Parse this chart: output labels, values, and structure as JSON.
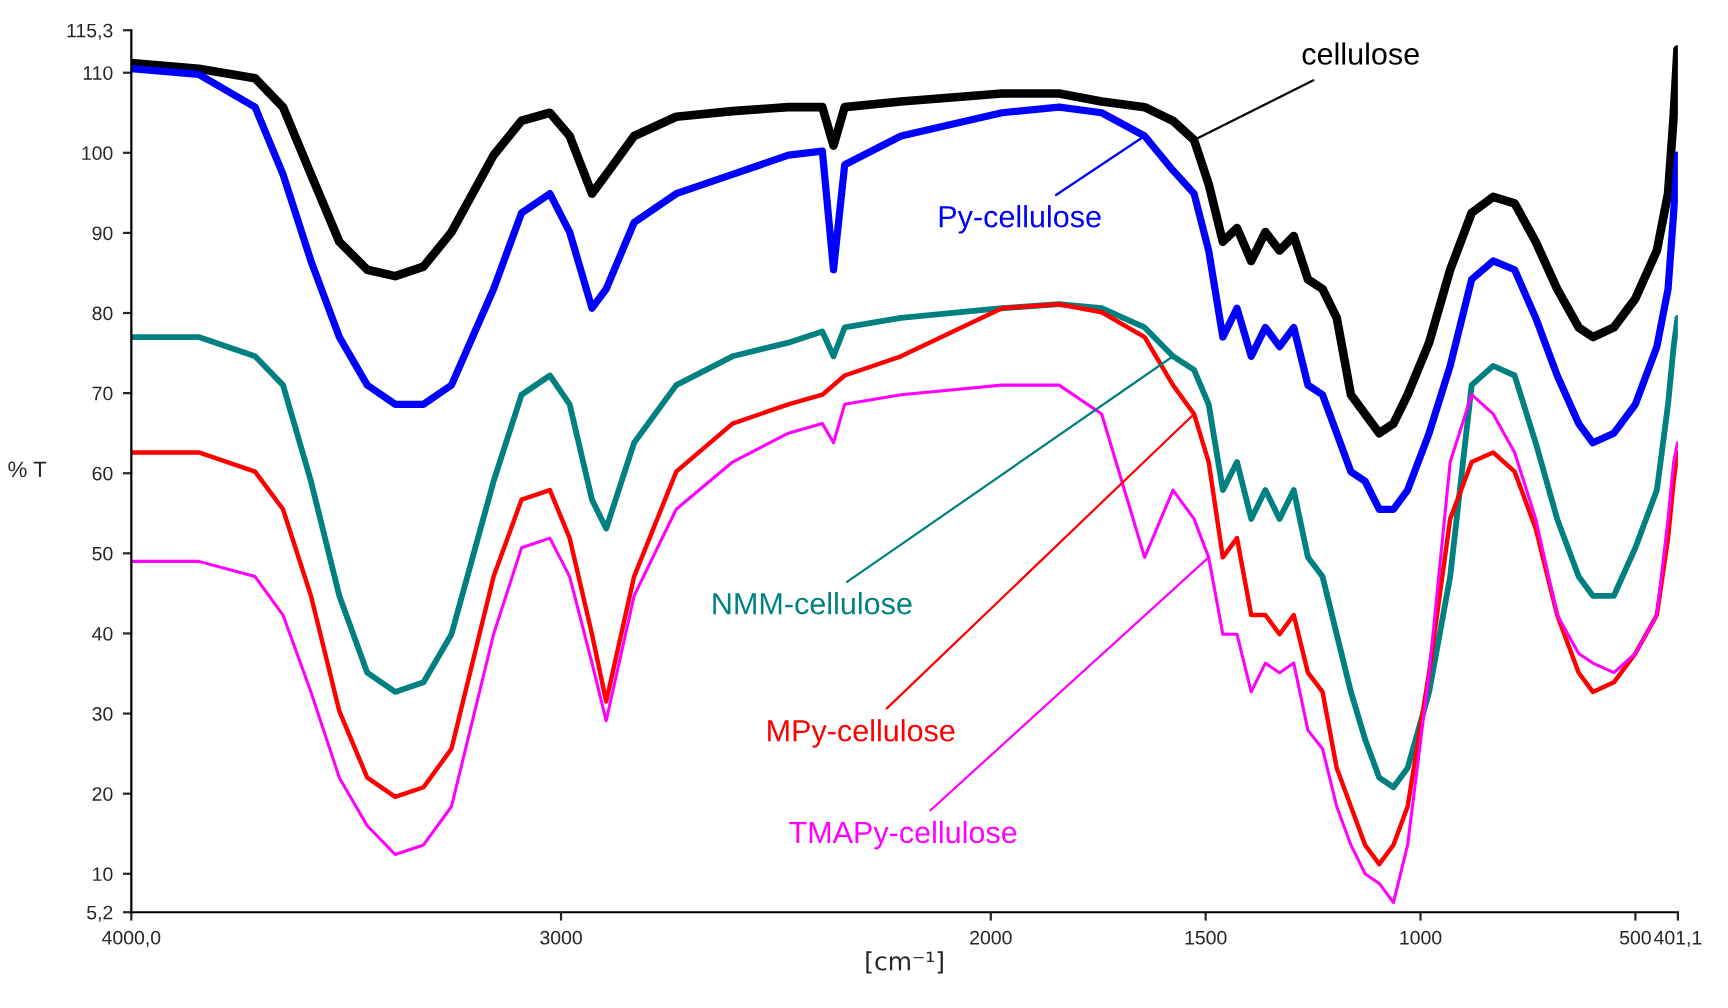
{
  "chart_data": {
    "type": "line",
    "xlabel": "[cm⁻¹]",
    "ylabel": "% T",
    "x": [
      4000,
      3843,
      3712,
      3647,
      3582,
      3516,
      3451,
      3386,
      3320,
      3255,
      3157,
      3092,
      3026,
      2980,
      2928,
      2895,
      2830,
      2732,
      2601,
      2471,
      2392,
      2366,
      2340,
      2209,
      1974,
      1841,
      1742,
      1642,
      1576,
      1527,
      1493,
      1460,
      1427,
      1394,
      1361,
      1328,
      1295,
      1262,
      1228,
      1195,
      1162,
      1129,
      1096,
      1063,
      1030,
      980,
      931,
      881,
      831,
      781,
      732,
      682,
      632,
      599,
      550,
      500,
      450,
      424,
      411,
      402
    ],
    "xlim": [
      4000,
      401.1
    ],
    "xticks": [
      {
        "value": 4000,
        "label": "4000,0"
      },
      3000,
      2000,
      1500,
      1000,
      500,
      {
        "value": 401.1,
        "label": "401,1"
      }
    ],
    "ylim": [
      5.2,
      115.3
    ],
    "yticks": [
      {
        "value": 5.2,
        "label": "5,2"
      },
      10,
      20,
      30,
      40,
      50,
      60,
      70,
      80,
      90,
      100,
      110,
      {
        "value": 115.3,
        "label": "115,3"
      }
    ],
    "grid": false,
    "series": [
      {
        "name": "cellulose",
        "color": "#000000",
        "values": [
          111.2,
          110.5,
          109.3,
          105.7,
          97.3,
          88.9,
          85.4,
          84.6,
          85.8,
          90.1,
          99.7,
          104,
          105,
          102.1,
          94.9,
          97.3,
          102.1,
          104.5,
          105.2,
          105.7,
          105.7,
          100.9,
          105.7,
          106.4,
          107.4,
          107.4,
          106.4,
          105.7,
          104,
          101.6,
          96.1,
          88.9,
          90.6,
          86.5,
          90.1,
          87.8,
          89.6,
          84.2,
          83,
          79.4,
          69.8,
          67.4,
          65,
          66.2,
          69.8,
          76.3,
          85.4,
          92.5,
          94.5,
          93.7,
          88.9,
          83,
          78.2,
          77,
          78.2,
          81.8,
          87.8,
          94.9,
          104.5,
          112.9
        ]
      },
      {
        "name": "Py-cellulose",
        "color": "#0000ff",
        "values": [
          110.5,
          109.8,
          105.7,
          97.3,
          86.5,
          77,
          71,
          68.6,
          68.6,
          71,
          83,
          92.5,
          94.9,
          90.1,
          80.6,
          83,
          91.3,
          94.9,
          97.3,
          99.7,
          100.2,
          85.4,
          98.5,
          102.1,
          105,
          105.7,
          105,
          102.1,
          97.8,
          94.9,
          87.8,
          77,
          80.6,
          74.6,
          78.2,
          75.8,
          78.2,
          71,
          69.8,
          65,
          60.2,
          59,
          55.5,
          55.5,
          57.9,
          65,
          73.4,
          84.2,
          86.5,
          85.4,
          79.4,
          72.2,
          66.2,
          63.8,
          65,
          68.6,
          75.8,
          83,
          92.5,
          99.7
        ]
      },
      {
        "name": "NMM-cellulose",
        "color": "#008080",
        "values": [
          77,
          77,
          74.6,
          71,
          59,
          44.7,
          35.1,
          32.7,
          33.9,
          39.9,
          59,
          69.8,
          72.2,
          68.6,
          56.7,
          53.1,
          63.8,
          71,
          74.6,
          76.3,
          77.7,
          74.6,
          78.2,
          79.4,
          80.6,
          81.1,
          80.6,
          78.2,
          74.6,
          72.9,
          68.6,
          57.9,
          61.4,
          54.3,
          57.9,
          54.3,
          57.9,
          49.5,
          47.1,
          39.9,
          32.7,
          26.8,
          22,
          20.8,
          23.2,
          32.7,
          47.1,
          71,
          73.4,
          72.2,
          63.8,
          54.3,
          47.1,
          44.7,
          44.7,
          50.7,
          57.9,
          68.6,
          75.8,
          79.4
        ]
      },
      {
        "name": "MPy-cellulose",
        "color": "#ff0000",
        "values": [
          62.6,
          62.6,
          60.2,
          55.5,
          44.7,
          30.3,
          22,
          19.6,
          20.8,
          25.6,
          47.1,
          56.7,
          57.9,
          51.9,
          39.9,
          31.5,
          47.1,
          60.2,
          66.2,
          68.6,
          69.8,
          71,
          72.2,
          74.6,
          80.6,
          81.1,
          80.1,
          77,
          71,
          67.4,
          61.4,
          49.5,
          51.9,
          42.3,
          42.3,
          39.9,
          42.3,
          35.1,
          32.7,
          23.2,
          18.4,
          13.6,
          11.2,
          13.6,
          18.4,
          35.1,
          54.3,
          61.4,
          62.6,
          60.2,
          53.1,
          42.3,
          35.1,
          32.7,
          33.9,
          37.5,
          42.3,
          51.9,
          59,
          62.6
        ]
      },
      {
        "name": "TMAPy-cellulose",
        "color": "#ff00ff",
        "values": [
          49,
          49,
          47.1,
          42.3,
          32.7,
          22,
          16,
          12.4,
          13.6,
          18.4,
          39.9,
          50.7,
          51.9,
          47.1,
          36.3,
          29.1,
          44.7,
          55.5,
          61.4,
          65,
          66.2,
          63.8,
          68.6,
          69.8,
          71,
          71,
          67.4,
          49.5,
          57.9,
          54.3,
          49.5,
          39.9,
          39.9,
          32.7,
          36.3,
          35.1,
          36.3,
          27.9,
          25.6,
          18.4,
          13.6,
          10,
          8.8,
          6.4,
          13.6,
          35.1,
          61.4,
          69.8,
          67.4,
          62.6,
          54.3,
          42.3,
          37.5,
          36.3,
          35.1,
          37.5,
          42.3,
          54.3,
          61.4,
          63.8
        ]
      }
    ]
  }
}
